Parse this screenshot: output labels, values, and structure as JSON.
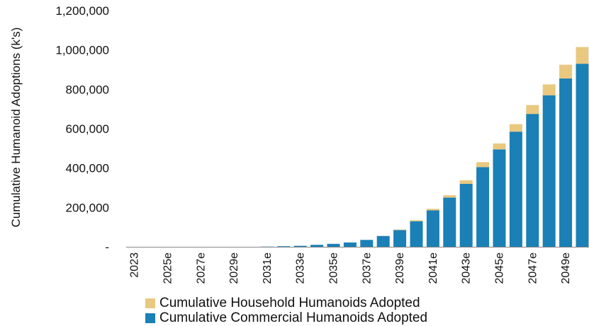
{
  "chart_data": {
    "type": "bar",
    "stacked": true,
    "ylabel": "Cumulative Humanoid Adoptions (k's)",
    "ylim": [
      0,
      1200000
    ],
    "yticks": [
      0,
      200000,
      400000,
      600000,
      800000,
      1000000,
      1200000
    ],
    "ytick_labels": [
      "-",
      "200,000",
      "400,000",
      "600,000",
      "800,000",
      "1,000,000",
      "1,200,000"
    ],
    "categories": [
      "2023",
      "2024e",
      "2025e",
      "2026e",
      "2027e",
      "2028e",
      "2029e",
      "2030e",
      "2031e",
      "2032e",
      "2033e",
      "2034e",
      "2035e",
      "2036e",
      "2037e",
      "2038e",
      "2039e",
      "2040e",
      "2041e",
      "2042e",
      "2043e",
      "2044e",
      "2045e",
      "2046e",
      "2047e",
      "2048e",
      "2049e",
      "2050e"
    ],
    "xtick_labels": [
      "2023",
      "2025e",
      "2027e",
      "2029e",
      "2031e",
      "2033e",
      "2035e",
      "2037e",
      "2039e",
      "2041e",
      "2043e",
      "2045e",
      "2047e",
      "2049e"
    ],
    "series": [
      {
        "name": "Cumulative Commercial Humanoids Adopted",
        "color": "#1a80b6",
        "values": [
          0,
          0,
          0,
          0,
          0,
          0,
          0,
          0,
          1000,
          3000,
          5000,
          10000,
          15000,
          22000,
          35000,
          55000,
          85000,
          130000,
          185000,
          250000,
          320000,
          405000,
          495000,
          585000,
          675000,
          770000,
          855000,
          930000
        ]
      },
      {
        "name": "Cumulative Household Humanoids Adopted",
        "color": "#e9c880",
        "values": [
          0,
          0,
          0,
          0,
          0,
          0,
          0,
          0,
          0,
          0,
          0,
          0,
          0,
          0,
          0,
          1000,
          3000,
          5000,
          8000,
          12000,
          18000,
          25000,
          30000,
          38000,
          45000,
          55000,
          70000,
          85000
        ]
      }
    ],
    "legend": [
      {
        "label": "Cumulative Household Humanoids Adopted",
        "color": "#e9c880"
      },
      {
        "label": "Cumulative Commercial Humanoids Adopted",
        "color": "#1a80b6"
      }
    ],
    "legend_position": "bottom-left",
    "grid": false
  }
}
